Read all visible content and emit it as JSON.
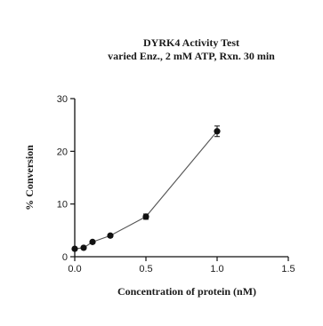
{
  "chart_data": {
    "type": "scatter",
    "title": "DYRK4 Activity Test",
    "subtitle": "varied Enz., 2 mM ATP, Rxn. 30 min",
    "xlabel": "Concentration of protein (nM)",
    "ylabel": "% Conversion",
    "xlim": [
      0,
      1.5
    ],
    "ylim": [
      0,
      30
    ],
    "xticks": [
      0.0,
      0.5,
      1.0,
      1.5
    ],
    "xtick_labels": [
      "0.0",
      "0.5",
      "1.0",
      "1.5"
    ],
    "yticks": [
      0,
      10,
      20,
      30
    ],
    "ytick_labels": [
      "0",
      "10",
      "20",
      "30"
    ],
    "grid": false,
    "connected": true,
    "series": [
      {
        "x": [
          0.0,
          0.0625,
          0.125,
          0.25,
          0.5,
          1.0
        ],
        "y": [
          1.5,
          1.7,
          2.8,
          4.0,
          7.6,
          23.8
        ],
        "err": [
          0.2,
          0.2,
          0.2,
          0.3,
          0.5,
          1.0
        ]
      }
    ],
    "colors": {
      "marker": "#111111",
      "line": "#555555",
      "axis": "#111111"
    }
  }
}
